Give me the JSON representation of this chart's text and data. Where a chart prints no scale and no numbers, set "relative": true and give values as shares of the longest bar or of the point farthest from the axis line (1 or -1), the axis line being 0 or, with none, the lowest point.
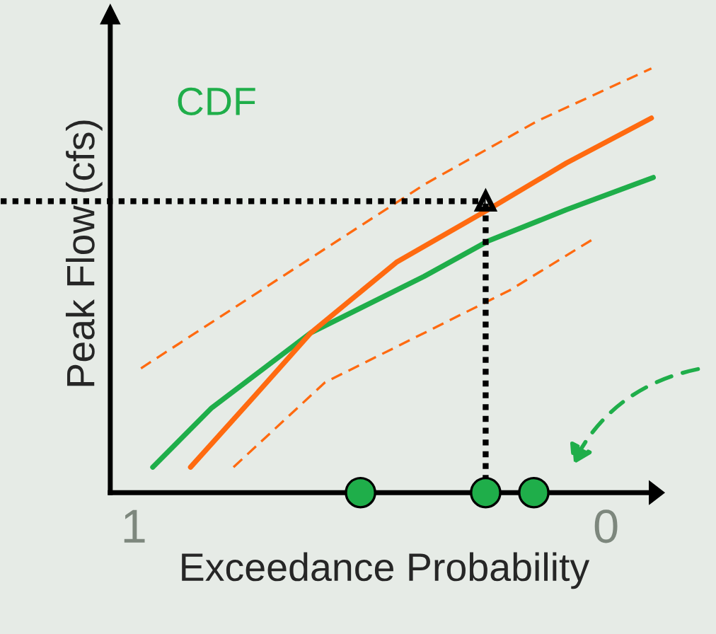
{
  "chart_data": {
    "type": "line",
    "relative": true,
    "xlabel": "Exceedance Probability",
    "ylabel": "Peak Flow (cfs)",
    "xlim": [
      1.05,
      -0.11
    ],
    "xticks": [
      1,
      0
    ],
    "series": [
      {
        "name": "CDF",
        "color": "#1fae4a",
        "x": [
          0.96,
          0.835,
          0.625,
          0.385,
          0.25,
          0.084,
          -0.1
        ],
        "values": [
          0.06,
          0.2,
          0.377,
          0.51,
          0.593,
          0.667,
          0.743
        ]
      },
      {
        "color": "#ff6a10",
        "x": [
          0.88,
          0.745,
          0.625,
          0.444,
          0.25,
          0.084,
          -0.096
        ],
        "values": [
          0.06,
          0.227,
          0.377,
          0.543,
          0.667,
          0.777,
          0.883
        ]
      },
      {
        "color": "#ff6a10",
        "line_style": "dashed",
        "x": [
          0.985,
          0.685,
          0.384,
          0.144,
          -0.096
        ],
        "values": [
          0.293,
          0.51,
          0.727,
          0.877,
          1.0
        ]
      },
      {
        "color": "#ff6a10",
        "line_style": "dashed",
        "x": [
          0.789,
          0.595,
          0.384,
          0.204,
          0.024
        ],
        "values": [
          0.06,
          0.26,
          0.377,
          0.477,
          0.6
        ]
      },
      {
        "type": "scatter",
        "color": "#1fae4a",
        "marker": "circle",
        "x": [
          0.52,
          0.255,
          0.153
        ],
        "values": [
          0,
          0,
          0
        ]
      }
    ],
    "ref_lines": [
      {
        "axis": "y",
        "value": 0.687,
        "color": "#000000",
        "line_style": "dotted"
      },
      {
        "axis": "x",
        "value": 0.255,
        "color": "#000000",
        "line_style": "dotted"
      }
    ]
  }
}
